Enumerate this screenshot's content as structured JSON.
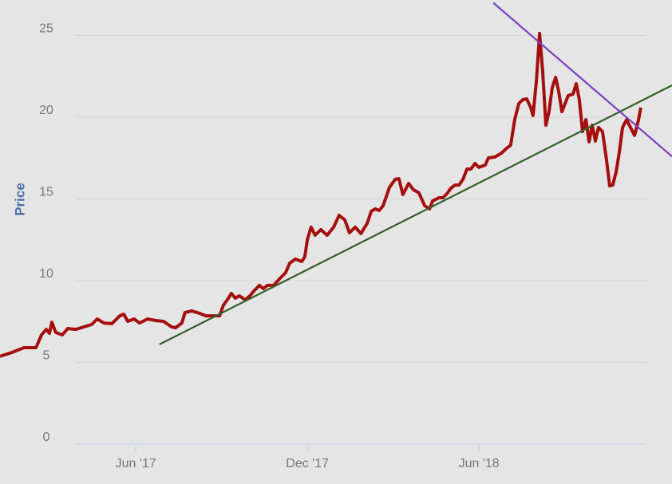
{
  "chart_data": {
    "type": "line",
    "y_label": "Price",
    "xlim": [
      0.25,
      23.75
    ],
    "ylim": [
      -2.44,
      27.17
    ],
    "xticks": [
      {
        "value": 5,
        "label": "Jun '17"
      },
      {
        "value": 11,
        "label": "Dec '17"
      },
      {
        "value": 17,
        "label": "Jun '18"
      }
    ],
    "yticks": [
      0,
      5,
      10,
      15,
      20,
      25
    ],
    "grid": true,
    "series": [
      {
        "color": "#a50e0e",
        "x": [
          0.25,
          0.67,
          1.09,
          1.51,
          1.7,
          1.87,
          1.98,
          2.06,
          2.2,
          2.43,
          2.62,
          2.9,
          3.18,
          3.46,
          3.65,
          3.88,
          4.16,
          4.44,
          4.58,
          4.72,
          4.94,
          5.13,
          5.41,
          5.69,
          5.97,
          6.25,
          6.39,
          6.61,
          6.72,
          6.95,
          7.23,
          7.45,
          7.73,
          7.93,
          8.06,
          8.2,
          8.34,
          8.48,
          8.62,
          8.82,
          8.99,
          9.13,
          9.32,
          9.46,
          9.6,
          9.82,
          10.02,
          10.24,
          10.38,
          10.58,
          10.8,
          10.91,
          11.0,
          11.13,
          11.27,
          11.47,
          11.69,
          11.92,
          12.11,
          12.31,
          12.47,
          12.67,
          12.87,
          13.09,
          13.23,
          13.37,
          13.51,
          13.65,
          13.87,
          14.07,
          14.2,
          14.34,
          14.54,
          14.71,
          14.9,
          15.1,
          15.27,
          15.38,
          15.6,
          15.74,
          15.88,
          16.02,
          16.16,
          16.3,
          16.44,
          16.58,
          16.72,
          16.86,
          17.0,
          17.22,
          17.33,
          17.55,
          17.78,
          17.97,
          18.11,
          18.25,
          18.39,
          18.53,
          18.67,
          18.81,
          18.89,
          19.01,
          19.12,
          19.23,
          19.34,
          19.45,
          19.56,
          19.68,
          19.79,
          19.9,
          20.01,
          20.12,
          20.29,
          20.4,
          20.51,
          20.62,
          20.74,
          20.85,
          20.96,
          21.07,
          21.18,
          21.32,
          21.46,
          21.57,
          21.68,
          21.8,
          21.91,
          22.02,
          22.16,
          22.3,
          22.44,
          22.58,
          22.66
        ],
        "values": [
          5.37,
          5.61,
          5.9,
          5.9,
          6.68,
          7.02,
          6.78,
          7.46,
          6.83,
          6.68,
          7.07,
          7.02,
          7.17,
          7.32,
          7.66,
          7.41,
          7.37,
          7.85,
          7.95,
          7.51,
          7.66,
          7.41,
          7.66,
          7.56,
          7.51,
          7.17,
          7.12,
          7.41,
          8.05,
          8.15,
          8.0,
          7.85,
          7.85,
          7.85,
          8.49,
          8.83,
          9.22,
          8.93,
          9.07,
          8.83,
          9.07,
          9.37,
          9.71,
          9.51,
          9.71,
          9.71,
          10.1,
          10.49,
          11.07,
          11.32,
          11.17,
          11.46,
          12.54,
          13.27,
          12.78,
          13.12,
          12.78,
          13.27,
          14.0,
          13.71,
          12.93,
          13.27,
          12.88,
          13.51,
          14.24,
          14.39,
          14.29,
          14.59,
          15.71,
          16.2,
          16.24,
          15.27,
          15.95,
          15.56,
          15.37,
          14.59,
          14.39,
          14.88,
          15.07,
          15.07,
          15.32,
          15.66,
          15.85,
          15.85,
          16.2,
          16.83,
          16.83,
          17.17,
          16.93,
          17.07,
          17.51,
          17.56,
          17.8,
          18.1,
          18.29,
          19.85,
          20.83,
          21.07,
          21.12,
          20.59,
          20.1,
          22.29,
          25.12,
          22.78,
          19.51,
          20.34,
          21.8,
          22.44,
          21.56,
          20.34,
          20.83,
          21.32,
          21.41,
          22.05,
          21.07,
          19.12,
          19.85,
          18.49,
          19.51,
          18.54,
          19.37,
          19.12,
          17.41,
          15.8,
          15.85,
          16.68,
          17.9,
          19.37,
          19.85,
          19.37,
          18.88,
          19.85,
          20.59
        ]
      },
      {
        "color": "#33602a",
        "x": [
          5.83,
          23.75
        ],
        "values": [
          6.1,
          21.95
        ]
      },
      {
        "color": "#7b3fc4",
        "x": [
          17.5,
          23.75
        ],
        "values": [
          27.0,
          17.6
        ]
      }
    ]
  }
}
